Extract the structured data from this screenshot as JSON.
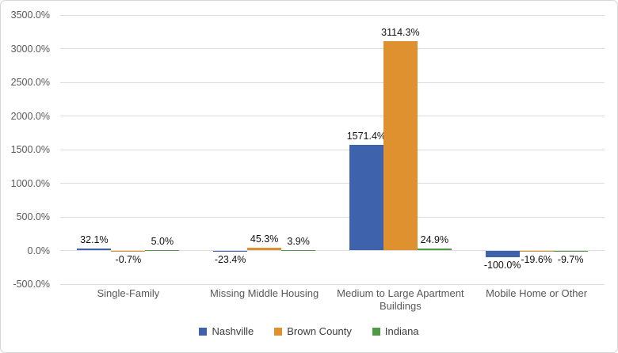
{
  "chart": {
    "colors": {
      "background": "#FFFFFF",
      "border": "#D7D7D7",
      "gridline": "#DCDCDC",
      "axis_text": "#595959",
      "data_label_text": "#111111",
      "legend_text": "#3B3B3B"
    }
  },
  "chart_data": {
    "type": "bar",
    "title": "",
    "xlabel": "",
    "ylabel": "",
    "categories": [
      "Single-Family",
      "Missing Middle Housing",
      "Medium to Large Apartment Buildings",
      "Mobile Home or Other"
    ],
    "series": [
      {
        "name": "Nashville",
        "color": "#3E62AB",
        "values": [
          32.1,
          -23.4,
          1571.4,
          -100.0
        ],
        "labels": [
          "32.1%",
          "-23.4%",
          "1571.4%",
          "-100.0%"
        ]
      },
      {
        "name": "Brown County",
        "color": "#E0912F",
        "values": [
          -0.7,
          45.3,
          3114.3,
          -19.6
        ],
        "labels": [
          "-0.7%",
          "45.3%",
          "3114.3%",
          "-19.6%"
        ]
      },
      {
        "name": "Indiana",
        "color": "#4F9A45",
        "values": [
          5.0,
          3.9,
          24.9,
          -9.7
        ],
        "labels": [
          "5.0%",
          "3.9%",
          "24.9%",
          "-9.7%"
        ]
      }
    ],
    "ylim": [
      -500,
      3500
    ],
    "y_tick_step": 500,
    "y_tick_labels": [
      "3500.0%",
      "3000.0%",
      "2500.0%",
      "2000.0%",
      "1500.0%",
      "1000.0%",
      "500.0%",
      "0.0%",
      "-500.0%"
    ],
    "gridlines": true,
    "legend": {
      "position": "bottom",
      "entries": [
        "Nashville",
        "Brown County",
        "Indiana"
      ]
    }
  }
}
